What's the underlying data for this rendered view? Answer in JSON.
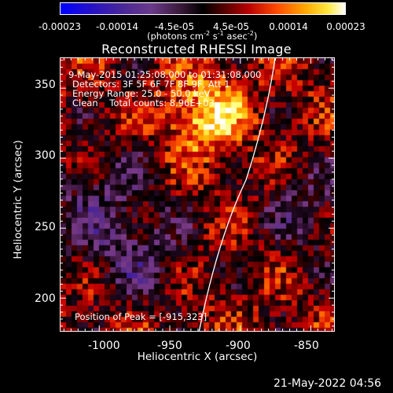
{
  "colorbar": {
    "ticks": [
      "-0.00023",
      "-0.00014",
      "-4.5e-05",
      "4.5e-05",
      "0.00014",
      "0.00023"
    ],
    "units_prefix": "(photons cm",
    "units_sup1": "-2",
    "units_mid1": " s",
    "units_sup2": "-1",
    "units_mid2": " asec",
    "units_sup3": "-2",
    "units_suffix": ")"
  },
  "title": "Reconstructed RHESSI Image",
  "annotations": {
    "time_range": "9-May-2015 01:25:08.000 to 01:31:08.000",
    "detectors": "Detectors: 3F 5F 6F 7F 8F 9F, Att 1",
    "energy_range": "Energy Range: 25.0 - 50.0 keV",
    "algorithm": "Clean    Total counts: 8.96E+03",
    "peak": "Position of Peak = [-915,323]"
  },
  "axes": {
    "xlabel": "Heliocentric X (arcsec)",
    "ylabel": "Heliocentric Y (arcsec)",
    "xticks": [
      "-1000",
      "-950",
      "-900",
      "-850"
    ],
    "yticks": [
      "350",
      "300",
      "250",
      "200"
    ],
    "xlim": [
      -1028,
      -833
    ],
    "ylim": [
      176,
      372
    ]
  },
  "footer_timestamp": "21-May-2022 04:56",
  "colors": {
    "background": "#000000",
    "colormap": [
      "#0000ff",
      "#3a1aa8",
      "#5a2d8a",
      "#7a3a86",
      "#000000",
      "#6a0000",
      "#c80000",
      "#ff5a00",
      "#ffb000",
      "#ffff60",
      "#ffffff"
    ]
  }
}
